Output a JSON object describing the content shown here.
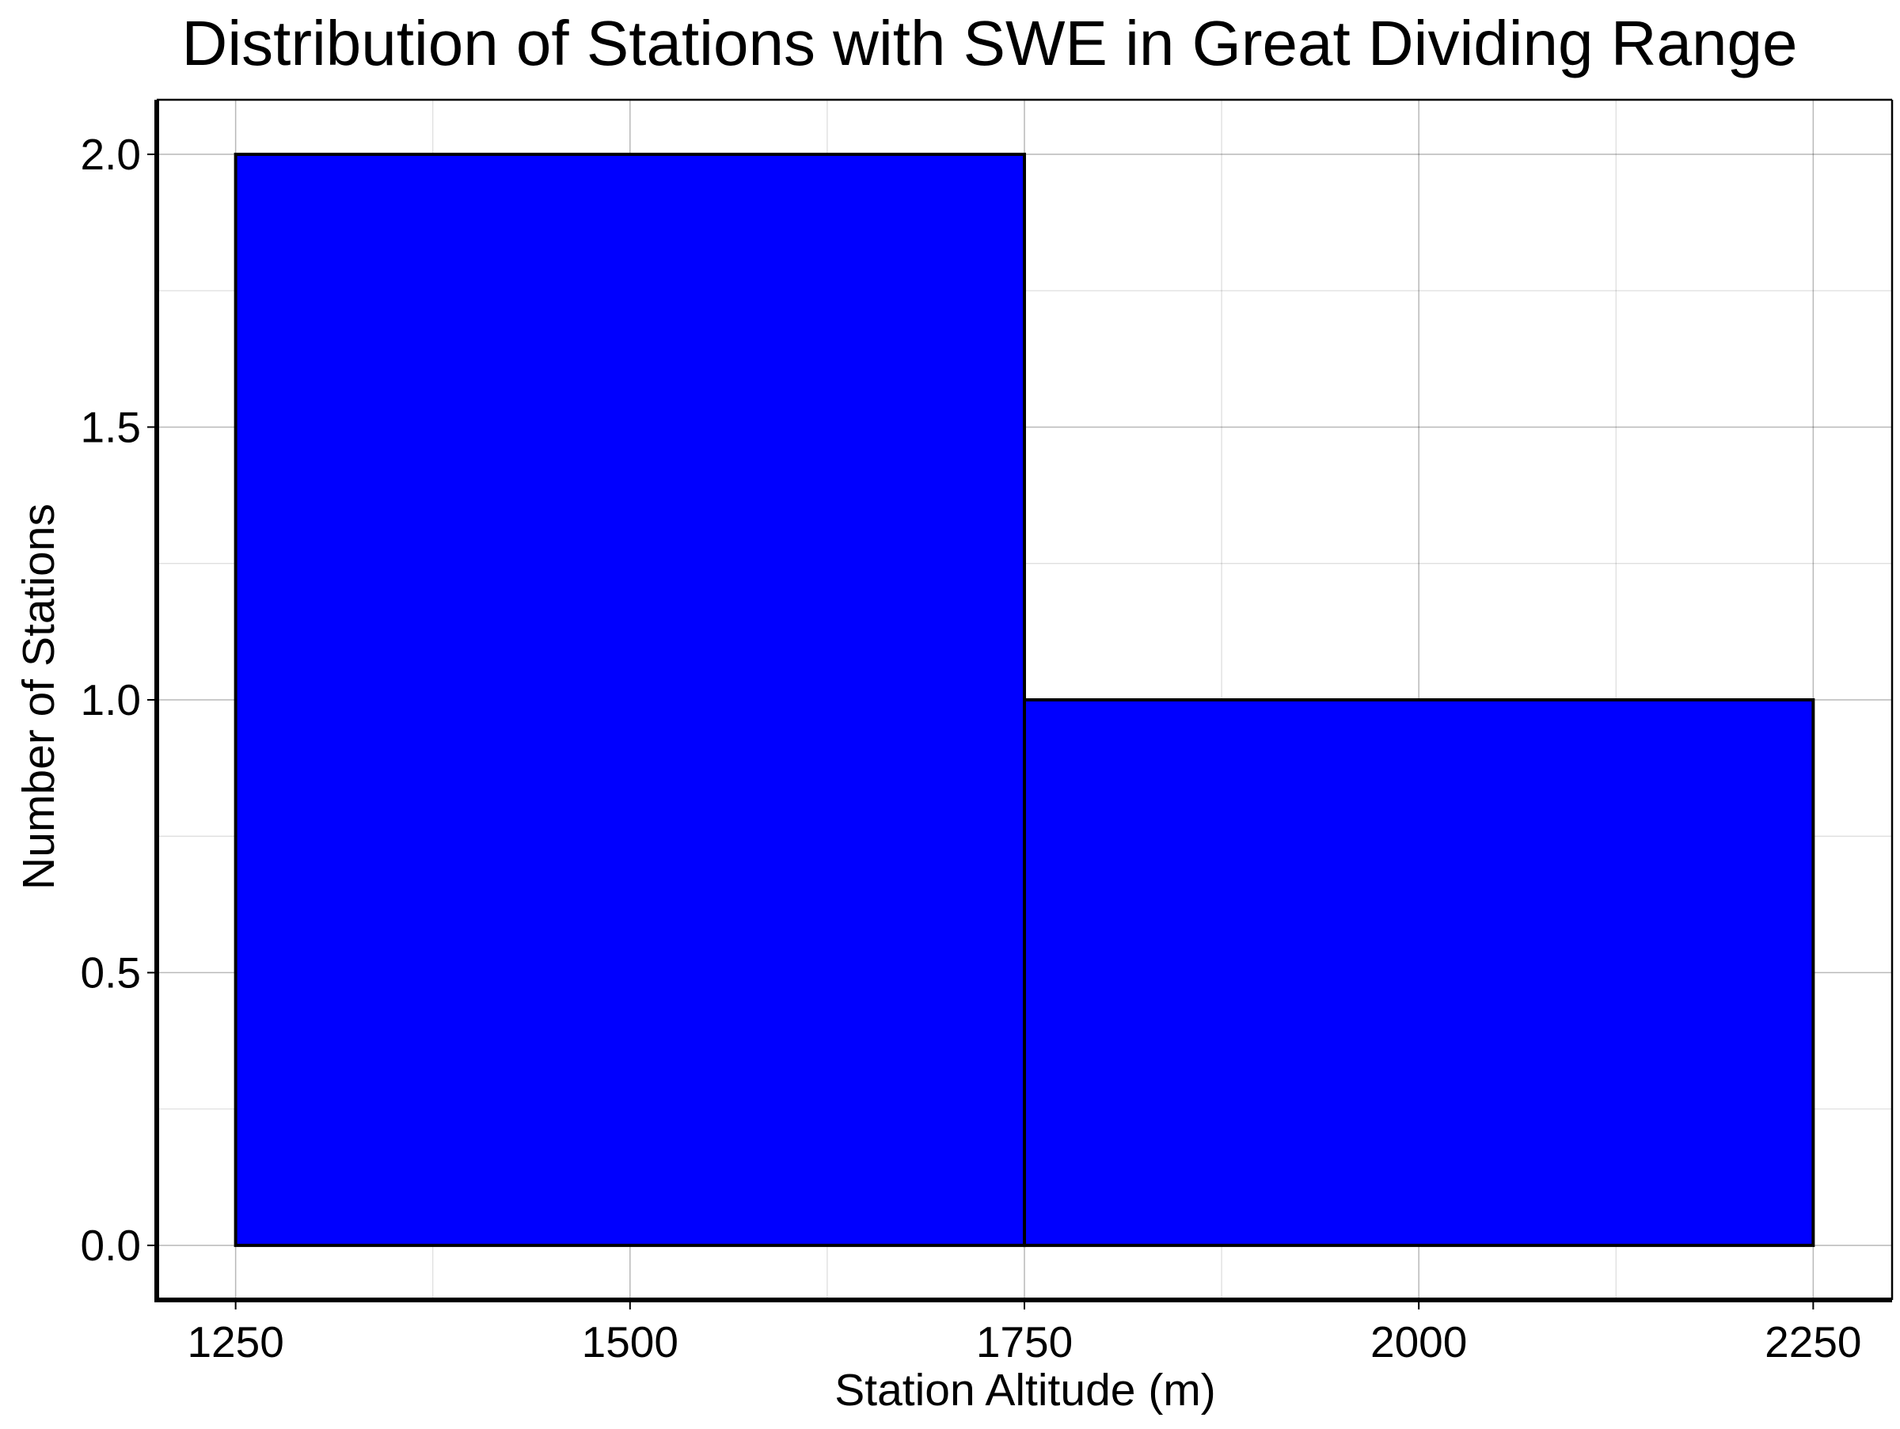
{
  "chart_data": {
    "type": "bar",
    "title": "Distribution of Stations with SWE in Great Dividing Range",
    "xlabel": "Station Altitude (m)",
    "ylabel": "Number of Stations",
    "bins": [
      {
        "x0": 1250,
        "x1": 1750,
        "count": 2
      },
      {
        "x0": 1750,
        "x1": 2250,
        "count": 1
      }
    ],
    "xlim": [
      1200,
      2300
    ],
    "ylim": [
      -0.1,
      2.1
    ],
    "xticks": [
      1250,
      1500,
      1750,
      2000,
      2250
    ],
    "xtick_labels": [
      "1250",
      "1500",
      "1750",
      "2000",
      "2250"
    ],
    "yticks": [
      0.0,
      0.5,
      1.0,
      1.5,
      2.0
    ],
    "ytick_labels": [
      "0.0",
      "0.5",
      "1.0",
      "1.5",
      "2.0"
    ],
    "x_minor_ticks": [
      1375,
      1625,
      1875,
      2125
    ],
    "y_minor_ticks": [
      0.25,
      0.75,
      1.25,
      1.75
    ],
    "grid": true,
    "colors": {
      "bar_fill": "#0000ff",
      "bar_edge": "#000000"
    }
  }
}
